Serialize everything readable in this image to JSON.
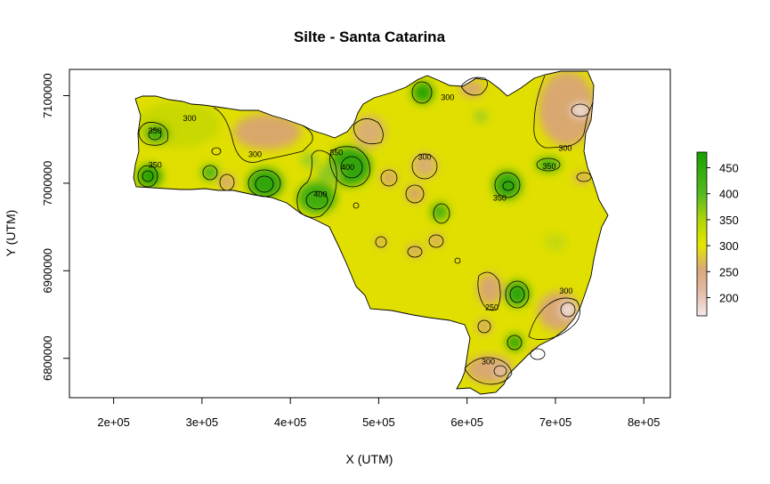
{
  "chart_data": {
    "type": "heatmap",
    "title": "Silte - Santa Catarina",
    "xlabel": "X (UTM)",
    "ylabel": "Y (UTM)",
    "xlim": [
      150000,
      830000
    ],
    "ylim": [
      6755000,
      7130000
    ],
    "x_ticks": [
      {
        "value": 200000,
        "label": "2e+05"
      },
      {
        "value": 300000,
        "label": "3e+05"
      },
      {
        "value": 400000,
        "label": "4e+05"
      },
      {
        "value": 500000,
        "label": "5e+05"
      },
      {
        "value": 600000,
        "label": "6e+05"
      },
      {
        "value": 700000,
        "label": "7e+05"
      },
      {
        "value": 800000,
        "label": "8e+05"
      }
    ],
    "y_ticks": [
      {
        "value": 6800000,
        "label": "6800000"
      },
      {
        "value": 6900000,
        "label": "6900000"
      },
      {
        "value": 7000000,
        "label": "7000000"
      },
      {
        "value": 7100000,
        "label": "7100000"
      }
    ],
    "legend": {
      "position": "right",
      "ticks": [
        {
          "value": 200,
          "label": "200"
        },
        {
          "value": 250,
          "label": "250"
        },
        {
          "value": 300,
          "label": "300"
        },
        {
          "value": 350,
          "label": "350"
        },
        {
          "value": 400,
          "label": "400"
        },
        {
          "value": 450,
          "label": "450"
        }
      ],
      "range": [
        165,
        480
      ]
    },
    "colors": {
      "low": "#f5e8e8",
      "mid_low": "#d9a878",
      "mid": "#e6e600",
      "mid_high": "#55bb20",
      "high": "#19a000",
      "background": "#e0e000"
    },
    "contour_labels": [
      {
        "text": "350",
        "x": 247000,
        "y": 7060000
      },
      {
        "text": "300",
        "x": 286000,
        "y": 7074000
      },
      {
        "text": "350",
        "x": 247000,
        "y": 7021000
      },
      {
        "text": "300",
        "x": 360000,
        "y": 7033000
      },
      {
        "text": "350",
        "x": 452000,
        "y": 7035000
      },
      {
        "text": "400",
        "x": 465000,
        "y": 7018000
      },
      {
        "text": "400",
        "x": 434000,
        "y": 6987000
      },
      {
        "text": "300",
        "x": 578000,
        "y": 7098000
      },
      {
        "text": "300",
        "x": 552000,
        "y": 7030000
      },
      {
        "text": "350",
        "x": 637000,
        "y": 6983000
      },
      {
        "text": "350",
        "x": 693000,
        "y": 7019000
      },
      {
        "text": "300",
        "x": 711000,
        "y": 7040000
      },
      {
        "text": "300",
        "x": 712000,
        "y": 6877000
      },
      {
        "text": "250",
        "x": 628000,
        "y": 6858000
      },
      {
        "text": "300",
        "x": 624000,
        "y": 6796000
      }
    ]
  }
}
